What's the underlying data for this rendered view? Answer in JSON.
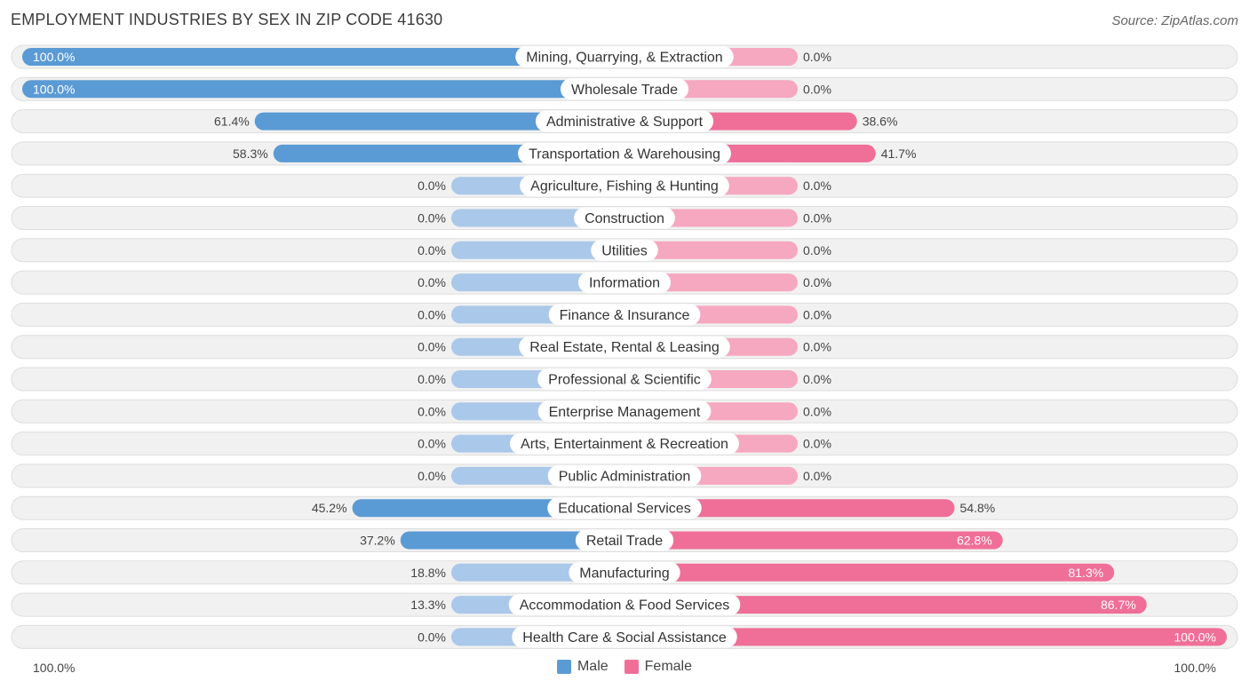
{
  "title": "EMPLOYMENT INDUSTRIES BY SEX IN ZIP CODE 41630",
  "source": "Source: ZipAtlas.com",
  "colors": {
    "male": "#5b9bd5",
    "male_light": "#a9c8ea",
    "female": "#ef6f98",
    "female_light": "#f5a8c0",
    "row_bg": "#f1f1f1",
    "row_border": "#dddddd"
  },
  "legend": {
    "male": "Male",
    "female": "Female"
  },
  "axis": {
    "left": "100.0%",
    "right": "100.0%"
  },
  "chart_data": {
    "type": "bar",
    "orientation": "horizontal-diverging",
    "title": "EMPLOYMENT INDUSTRIES BY SEX IN ZIP CODE 41630",
    "categories": [
      "Mining, Quarrying, & Extraction",
      "Wholesale Trade",
      "Administrative & Support",
      "Transportation & Warehousing",
      "Agriculture, Fishing & Hunting",
      "Construction",
      "Utilities",
      "Information",
      "Finance & Insurance",
      "Real Estate, Rental & Leasing",
      "Professional & Scientific",
      "Enterprise Management",
      "Arts, Entertainment & Recreation",
      "Public Administration",
      "Educational Services",
      "Retail Trade",
      "Manufacturing",
      "Accommodation & Food Services",
      "Health Care & Social Assistance"
    ],
    "series": [
      {
        "name": "Male",
        "values": [
          100.0,
          100.0,
          61.4,
          58.3,
          0.0,
          0.0,
          0.0,
          0.0,
          0.0,
          0.0,
          0.0,
          0.0,
          0.0,
          0.0,
          45.2,
          37.2,
          18.8,
          13.3,
          0.0
        ],
        "labels": [
          "100.0%",
          "100.0%",
          "61.4%",
          "58.3%",
          "0.0%",
          "0.0%",
          "0.0%",
          "0.0%",
          "0.0%",
          "0.0%",
          "0.0%",
          "0.0%",
          "0.0%",
          "0.0%",
          "45.2%",
          "37.2%",
          "18.8%",
          "13.3%",
          "0.0%"
        ]
      },
      {
        "name": "Female",
        "values": [
          0.0,
          0.0,
          38.6,
          41.7,
          0.0,
          0.0,
          0.0,
          0.0,
          0.0,
          0.0,
          0.0,
          0.0,
          0.0,
          0.0,
          54.8,
          62.8,
          81.3,
          86.7,
          100.0
        ],
        "labels": [
          "0.0%",
          "0.0%",
          "38.6%",
          "41.7%",
          "0.0%",
          "0.0%",
          "0.0%",
          "0.0%",
          "0.0%",
          "0.0%",
          "0.0%",
          "0.0%",
          "0.0%",
          "0.0%",
          "54.8%",
          "62.8%",
          "81.3%",
          "86.7%",
          "100.0%"
        ]
      }
    ],
    "xlim": [
      -100,
      100
    ],
    "legend_position": "bottom-center"
  }
}
